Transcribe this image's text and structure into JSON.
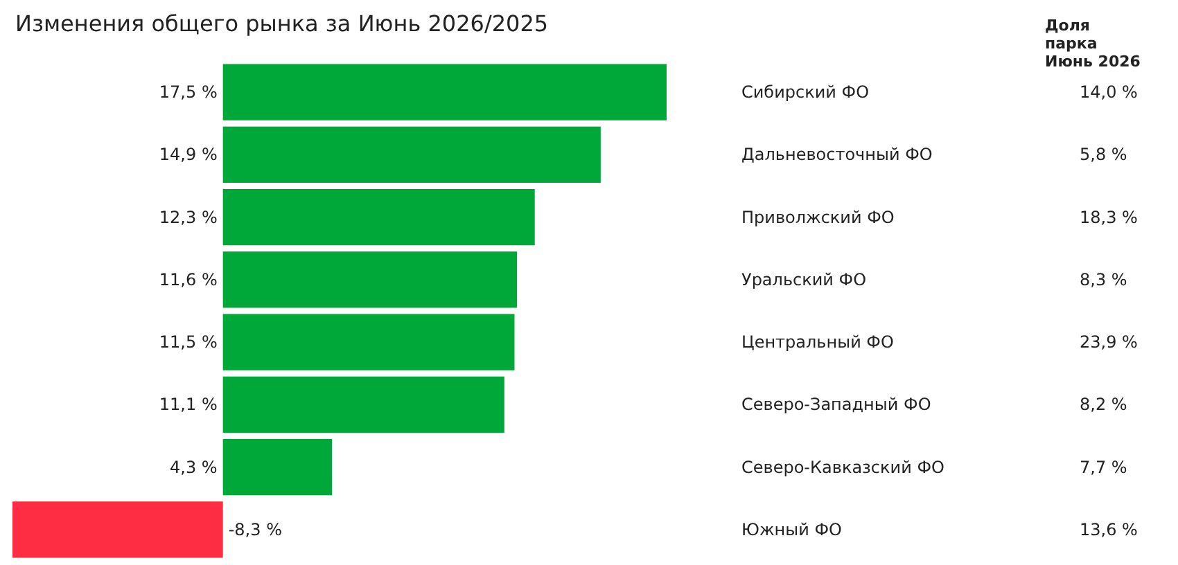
{
  "chart_data": {
    "type": "bar",
    "orientation": "horizontal",
    "title": "Изменения общего рынка за Июнь 2026/2025",
    "categories": [
      "Сибирский ФО",
      "Дальневосточный ФО",
      "Приволжский ФО",
      "Уральский ФО",
      "Центральный ФО",
      "Северо-Западный ФО",
      "Северо-Кавказский ФО",
      "Южный ФО"
    ],
    "values": [
      17.5,
      14.9,
      12.3,
      11.6,
      11.5,
      11.1,
      4.3,
      -8.3
    ],
    "colors": [
      "#00a83a",
      "#00a83a",
      "#00a83a",
      "#00a83a",
      "#00a83a",
      "#00a83a",
      "#00a83a",
      "#ff2d44"
    ],
    "value_labels": [
      "17,5 %",
      "14,9 %",
      "12,3 %",
      "11,6 %",
      "11,5 %",
      "11,1 %",
      "4,3 %",
      "-8,3 %"
    ],
    "annotations": [
      "Доля парка Июнь 2026"
    ],
    "y2_categories": [
      "14,0 %",
      "5,8 %",
      "18,3 %",
      "8,3 %",
      "23,9 %",
      "8,2 %",
      "7,7 %",
      "13,6 %"
    ],
    "xlim": [
      -8.3,
      17.5
    ],
    "tick_labels": "y",
    "grid": false
  }
}
